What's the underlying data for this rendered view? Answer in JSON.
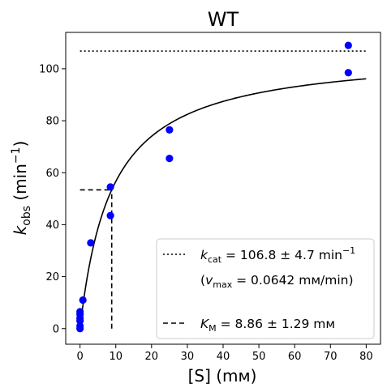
{
  "chart_data": {
    "type": "scatter",
    "title": "WT",
    "xlabel": "[S] (mм)",
    "ylabel": "k_obs (min⁻¹)",
    "xlim": [
      -4,
      84
    ],
    "ylim": [
      -6,
      114
    ],
    "x_ticks": [
      0,
      10,
      20,
      30,
      40,
      50,
      60,
      70,
      80
    ],
    "y_ticks": [
      0,
      20,
      40,
      60,
      80,
      100
    ],
    "grid": false,
    "legend_position": "lower-right",
    "colors": {
      "points": "#0000ff",
      "fit": "#000000",
      "lines": "#000000"
    },
    "points": [
      {
        "x": 0,
        "y": 0
      },
      {
        "x": 0,
        "y": 1
      },
      {
        "x": 0,
        "y": 3
      },
      {
        "x": 0,
        "y": 4
      },
      {
        "x": 0,
        "y": 5.5
      },
      {
        "x": 0,
        "y": 6.5
      },
      {
        "x": 0.8,
        "y": 11
      },
      {
        "x": 3,
        "y": 33
      },
      {
        "x": 8.5,
        "y": 43.5
      },
      {
        "x": 8.5,
        "y": 54.5
      },
      {
        "x": 25,
        "y": 65.5
      },
      {
        "x": 25,
        "y": 76.5
      },
      {
        "x": 75,
        "y": 98.5
      },
      {
        "x": 75,
        "y": 109
      }
    ],
    "fit": {
      "model": "michaelis-menten",
      "kcat": 106.8,
      "KM": 8.86,
      "x_range": [
        0,
        80
      ]
    },
    "kcat_line": {
      "y": 106.8,
      "x_range": [
        0,
        80
      ]
    },
    "km_lines": {
      "x": 8.86,
      "y": 53.4
    },
    "legend": {
      "kcat_symbol": "k",
      "kcat_sub": "cat",
      "kcat_text": " = 106.8 ± 4.7 min",
      "kcat_sup": "−1",
      "vmax_open": "(",
      "vmax_symbol": "v",
      "vmax_sub": "max",
      "vmax_text": " = 0.0642 mм/min)",
      "km_symbol": "K",
      "km_sub": "M",
      "km_text": " = 8.86 ± 1.29 mм"
    },
    "ylabel_parts": {
      "symbol": "k",
      "sub": "obs",
      "rest": " (min",
      "sup": "−1",
      "close": ")"
    }
  }
}
